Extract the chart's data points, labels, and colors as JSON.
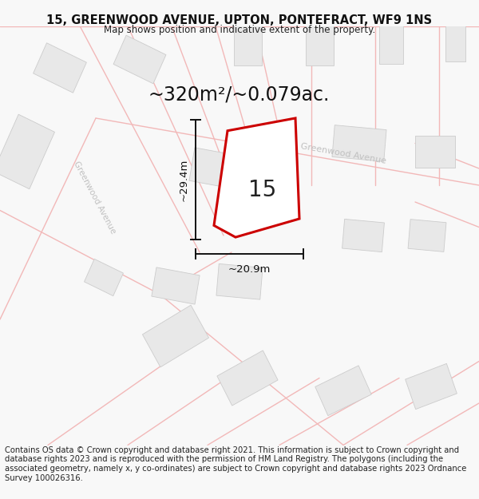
{
  "title_line1": "15, GREENWOOD AVENUE, UPTON, PONTEFRACT, WF9 1NS",
  "title_line2": "Map shows position and indicative extent of the property.",
  "area_label": "~320m²/~0.079ac.",
  "property_number": "15",
  "dim_width": "~20.9m",
  "dim_height": "~29.4m",
  "footer_text": "Contains OS data © Crown copyright and database right 2021. This information is subject to Crown copyright and database rights 2023 and is reproduced with the permission of HM Land Registry. The polygons (including the associated geometry, namely x, y co-ordinates) are subject to Crown copyright and database rights 2023 Ordnance Survey 100026316.",
  "bg_color": "#f8f8f8",
  "map_bg_color": "#ffffff",
  "road_color": "#f2b8b8",
  "building_fill": "#e8e8e8",
  "building_edge": "#cccccc",
  "property_edge_color": "#cc0000",
  "property_fill_color": "#ffffff",
  "dim_color": "#111111",
  "street_label_color": "#c0c0c0",
  "title_fontsize": 10.5,
  "subtitle_fontsize": 8.5,
  "area_fontsize": 17,
  "number_fontsize": 20,
  "dim_fontsize": 9.5,
  "footer_fontsize": 7.2,
  "road_linewidth": 1.0,
  "prop_linewidth": 2.2,
  "dim_linewidth": 1.4
}
